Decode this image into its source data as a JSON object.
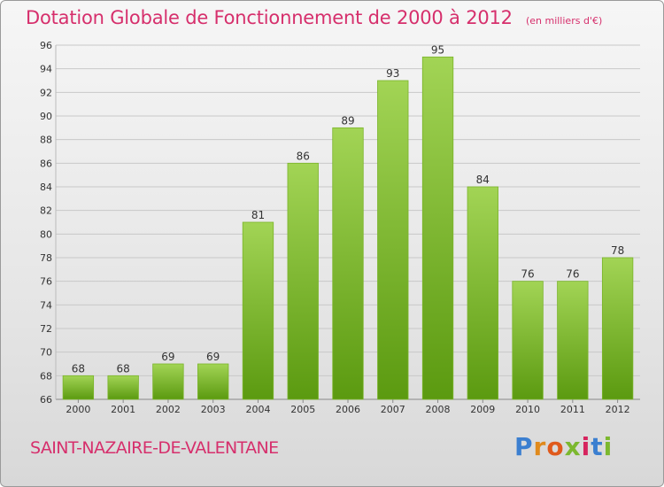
{
  "colors": {
    "title": "#d62f6c",
    "bar_top": "#a2d455",
    "bar_bottom": "#5b9a10",
    "bar_stroke": "#7ab42a",
    "grid": "#c8c8c8",
    "axis_text": "#333333"
  },
  "commune": "SAINT-NAZAIRE-DE-VALENTANE",
  "logo": {
    "letters": [
      "P",
      "r",
      "o",
      "x",
      "i",
      "t",
      "i"
    ],
    "colors": [
      "#3b7fd0",
      "#e08a1c",
      "#e05a1c",
      "#7cb82f",
      "#d6245e",
      "#3b7fd0",
      "#7cb82f"
    ]
  },
  "chart_data": {
    "type": "bar",
    "title": "Dotation Globale de Fonctionnement de 2000 à 2012",
    "subtitle": "(en milliers d'€)",
    "categories": [
      "2000",
      "2001",
      "2002",
      "2003",
      "2004",
      "2005",
      "2006",
      "2007",
      "2008",
      "2009",
      "2010",
      "2011",
      "2012"
    ],
    "values": [
      68,
      68,
      69,
      69,
      81,
      86,
      89,
      93,
      95,
      84,
      76,
      76,
      78
    ],
    "ylim": [
      66,
      96
    ],
    "yticks": [
      66,
      68,
      70,
      72,
      74,
      76,
      78,
      80,
      82,
      84,
      86,
      88,
      90,
      92,
      94,
      96
    ],
    "grid": true,
    "xlabel": "",
    "ylabel": ""
  }
}
